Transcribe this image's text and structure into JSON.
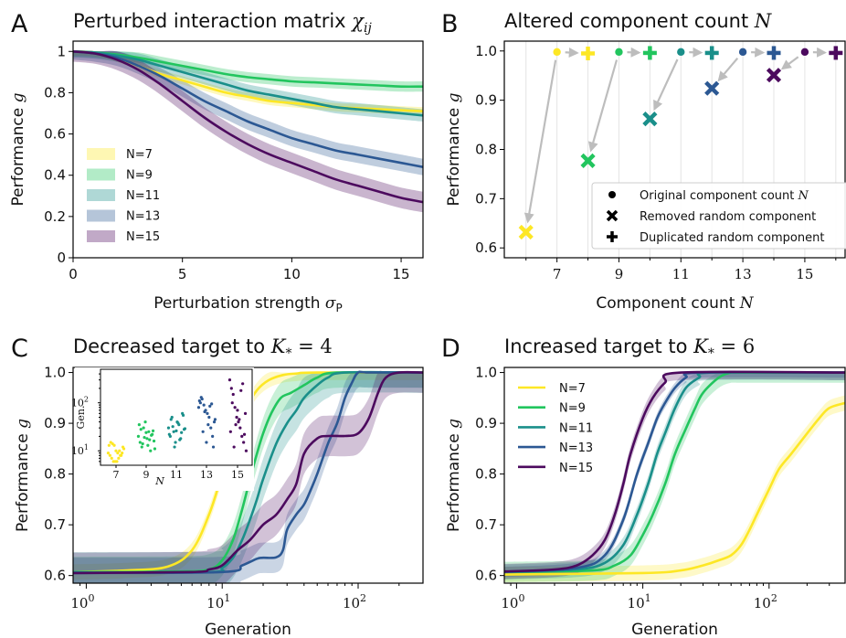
{
  "figure": {
    "colors": {
      "N=7": "#fde725",
      "N=9": "#22c55e",
      "N=11": "#1a8f8a",
      "N=13": "#2c5893",
      "N=15": "#4c0a5e"
    },
    "arrow_color": "#bdbdbd"
  },
  "chart_data": [
    {
      "panel": "A",
      "type": "line",
      "title_text": "Perturbed interaction matrix",
      "title_math": "χ",
      "title_sub": "ij",
      "xlabel_text": "Perturbation strength",
      "xlabel_math": "σ",
      "xlabel_sub": "P",
      "ylabel_text": "Performance",
      "ylabel_math": "g",
      "xlim": [
        0,
        16
      ],
      "ylim": [
        0,
        1.05
      ],
      "xticks": [
        0,
        5,
        10,
        15
      ],
      "yticks": [
        0,
        0.2,
        0.4,
        0.6,
        0.8,
        1
      ],
      "ytick_labels": [
        "0",
        "0.2",
        "0.4",
        "0.6",
        "0.8",
        "1"
      ],
      "legend": "center-left",
      "x": [
        0,
        1,
        2,
        3,
        4,
        5,
        6,
        7,
        8,
        9,
        10,
        11,
        12,
        13,
        14,
        15,
        16
      ],
      "series": [
        {
          "name": "N=7",
          "values": [
            1.0,
            0.995,
            0.97,
            0.93,
            0.89,
            0.86,
            0.83,
            0.8,
            0.78,
            0.76,
            0.75,
            0.74,
            0.73,
            0.725,
            0.72,
            0.715,
            0.71
          ],
          "band": 0.02
        },
        {
          "name": "N=9",
          "values": [
            1.0,
            0.995,
            0.985,
            0.97,
            0.95,
            0.93,
            0.91,
            0.89,
            0.875,
            0.865,
            0.855,
            0.85,
            0.845,
            0.84,
            0.835,
            0.83,
            0.83
          ],
          "band": 0.025
        },
        {
          "name": "N=11",
          "values": [
            1.0,
            0.995,
            0.98,
            0.96,
            0.93,
            0.9,
            0.87,
            0.84,
            0.81,
            0.79,
            0.77,
            0.75,
            0.73,
            0.72,
            0.71,
            0.7,
            0.69
          ],
          "band": 0.03
        },
        {
          "name": "N=13",
          "values": [
            1.0,
            0.99,
            0.97,
            0.93,
            0.88,
            0.82,
            0.76,
            0.71,
            0.66,
            0.62,
            0.58,
            0.55,
            0.52,
            0.5,
            0.48,
            0.46,
            0.44
          ],
          "band": 0.04
        },
        {
          "name": "N=15",
          "values": [
            1.0,
            0.99,
            0.96,
            0.91,
            0.84,
            0.76,
            0.68,
            0.61,
            0.55,
            0.5,
            0.46,
            0.42,
            0.38,
            0.35,
            0.32,
            0.29,
            0.27
          ],
          "band": 0.05
        }
      ]
    },
    {
      "panel": "B",
      "type": "scatter",
      "title_text": "Altered component count",
      "title_math": "N",
      "xlabel_text": "Component count",
      "xlabel_math": "N",
      "ylabel_text": "Performance",
      "ylabel_math": "g",
      "xlim": [
        5.3,
        16.3
      ],
      "ylim": [
        0.58,
        1.02
      ],
      "xticks": [
        7,
        9,
        11,
        13,
        15
      ],
      "yticks": [
        0.6,
        0.7,
        0.8,
        0.9,
        1.0
      ],
      "ytick_labels": [
        "0.6",
        "0.7",
        "0.8",
        "0.9",
        "1.0"
      ],
      "legend": "bottom-right",
      "legend_entries": [
        {
          "marker": "dot",
          "text": "Original component count",
          "math": "N"
        },
        {
          "marker": "x",
          "text": "Removed random component",
          "math": ""
        },
        {
          "marker": "plus",
          "text": "Duplicated random component",
          "math": ""
        }
      ],
      "groups": [
        {
          "name": "N=7",
          "original": {
            "x": 7,
            "y": 0.998
          },
          "removed": {
            "x": 6,
            "y": 0.632
          },
          "duplicated": {
            "x": 8,
            "y": 0.995
          }
        },
        {
          "name": "N=9",
          "original": {
            "x": 9,
            "y": 0.998
          },
          "removed": {
            "x": 8,
            "y": 0.777
          },
          "duplicated": {
            "x": 10,
            "y": 0.996
          }
        },
        {
          "name": "N=11",
          "original": {
            "x": 11,
            "y": 0.998
          },
          "removed": {
            "x": 10,
            "y": 0.862
          },
          "duplicated": {
            "x": 12,
            "y": 0.996
          }
        },
        {
          "name": "N=13",
          "original": {
            "x": 13,
            "y": 0.998
          },
          "removed": {
            "x": 12,
            "y": 0.924
          },
          "duplicated": {
            "x": 14,
            "y": 0.996
          }
        },
        {
          "name": "N=15",
          "original": {
            "x": 15,
            "y": 0.998
          },
          "removed": {
            "x": 14,
            "y": 0.951
          },
          "duplicated": {
            "x": 16,
            "y": 0.996
          }
        }
      ]
    },
    {
      "panel": "C",
      "type": "line",
      "title_text": "Decreased target to",
      "title_math": "K",
      "title_sub": "*",
      "title_eq": " = 4",
      "xlabel_text": "Generation",
      "ylabel_text": "Performance",
      "ylabel_math": "g",
      "xscale": "log",
      "xlim": [
        0.8,
        300
      ],
      "ylim": [
        0.585,
        1.01
      ],
      "xticks": [
        1,
        10,
        100
      ],
      "yticks": [
        0.6,
        0.7,
        0.8,
        0.9,
        1.0
      ],
      "ytick_labels": [
        "0.6",
        "0.7",
        "0.8",
        "0.9",
        "1.0"
      ],
      "series": [
        {
          "name": "N=7",
          "x": [
            0.8,
            2,
            4,
            6,
            8,
            10,
            12,
            15,
            18,
            22,
            28,
            35,
            50,
            300
          ],
          "values": [
            0.607,
            0.61,
            0.618,
            0.65,
            0.72,
            0.8,
            0.87,
            0.93,
            0.965,
            0.985,
            0.995,
            0.998,
            1.0,
            1.0
          ],
          "band": 0.015
        },
        {
          "name": "N=9",
          "x": [
            0.8,
            5,
            8,
            10,
            12,
            14,
            16,
            18,
            20,
            23,
            27,
            32,
            40,
            50,
            70,
            300
          ],
          "values": [
            0.607,
            0.608,
            0.612,
            0.63,
            0.67,
            0.73,
            0.79,
            0.84,
            0.88,
            0.92,
            0.95,
            0.96,
            0.975,
            0.99,
            1.0,
            1.0
          ],
          "band": 0.03
        },
        {
          "name": "N=11",
          "x": [
            0.8,
            8,
            10,
            12,
            14,
            16,
            18,
            20,
            25,
            30,
            35,
            40,
            50,
            60,
            80,
            300
          ],
          "values": [
            0.606,
            0.607,
            0.615,
            0.635,
            0.67,
            0.71,
            0.75,
            0.79,
            0.86,
            0.9,
            0.925,
            0.95,
            0.975,
            0.99,
            1.0,
            1.0
          ],
          "band": 0.04
        },
        {
          "name": "N=13",
          "x": [
            0.8,
            10,
            14,
            18,
            20,
            25,
            28,
            30,
            35,
            40,
            45,
            50,
            60,
            70,
            80,
            90,
            100,
            120,
            300
          ],
          "values": [
            0.605,
            0.607,
            0.62,
            0.633,
            0.635,
            0.636,
            0.65,
            0.69,
            0.72,
            0.74,
            0.77,
            0.8,
            0.86,
            0.9,
            0.95,
            0.98,
            1.0,
            1.0,
            1.0
          ],
          "band": 0.03
        },
        {
          "name": "N=15",
          "x": [
            0.8,
            6,
            8,
            10,
            13,
            16,
            20,
            25,
            30,
            35,
            40,
            50,
            60,
            80,
            100,
            120,
            140,
            160,
            200,
            300
          ],
          "values": [
            0.605,
            0.607,
            0.612,
            0.62,
            0.65,
            0.67,
            0.7,
            0.72,
            0.75,
            0.78,
            0.84,
            0.87,
            0.875,
            0.875,
            0.88,
            0.91,
            0.96,
            0.99,
            1.0,
            1.0
          ],
          "band": 0.04
        }
      ],
      "inset": {
        "type": "scatter",
        "ylabel": "Gen.",
        "xlabel_math": "N",
        "yscale": "log",
        "ylim": [
          5,
          500
        ],
        "xticks": [
          7,
          9,
          11,
          13,
          15
        ],
        "yticks": [
          10,
          100
        ],
        "ytick_bases": [
          "10",
          "10"
        ],
        "ytick_exps": [
          "1",
          "2"
        ],
        "points": [
          {
            "name": "N=7",
            "x": 7,
            "gens": [
              9,
              8,
              7,
              6,
              6,
              6,
              7,
              8,
              9,
              11,
              13,
              15,
              14,
              13,
              10,
              9,
              10,
              8,
              12
            ]
          },
          {
            "name": "N=9",
            "x": 9,
            "gens": [
              20,
              15,
              12,
              30,
              40,
              18,
              25,
              10,
              22,
              16,
              35,
              28,
              14,
              19,
              24,
              13,
              17,
              21,
              26,
              11
            ]
          },
          {
            "name": "N=11",
            "x": 11,
            "gens": [
              30,
              20,
              50,
              25,
              15,
              40,
              35,
              18,
              60,
              28,
              22,
              45,
              32,
              12,
              26,
              38,
              17,
              24,
              55,
              29
            ]
          },
          {
            "name": "N=13",
            "x": 13,
            "gens": [
              80,
              100,
              120,
              90,
              70,
              60,
              50,
              30,
              20,
              40,
              110,
              130,
              25,
              65,
              15,
              35,
              85,
              95,
              12,
              45
            ]
          },
          {
            "name": "N=15",
            "x": 15,
            "gens": [
              300,
              200,
              150,
              80,
              50,
              40,
              30,
              20,
              15,
              60,
              25,
              100,
              12,
              35,
              70,
              45,
              180,
              250,
              22,
              10
            ]
          }
        ]
      }
    },
    {
      "panel": "D",
      "type": "line",
      "title_text": "Increased target to",
      "title_math": "K",
      "title_sub": "*",
      "title_eq": " = 6",
      "xlabel_text": "Generation",
      "ylabel_text": "Performance",
      "ylabel_math": "g",
      "xscale": "log",
      "xlim": [
        0.8,
        400
      ],
      "ylim": [
        0.585,
        1.01
      ],
      "xticks": [
        1,
        10,
        100
      ],
      "yticks": [
        0.6,
        0.7,
        0.8,
        0.9,
        1.0
      ],
      "ytick_labels": [
        "0.6",
        "0.7",
        "0.8",
        "0.9",
        "1.0"
      ],
      "legend": "top-left",
      "series": [
        {
          "name": "N=7",
          "x": [
            0.8,
            10,
            20,
            30,
            40,
            50,
            60,
            70,
            80,
            100,
            120,
            150,
            200,
            250,
            300,
            400
          ],
          "values": [
            0.602,
            0.605,
            0.61,
            0.62,
            0.63,
            0.64,
            0.66,
            0.69,
            0.72,
            0.77,
            0.81,
            0.84,
            0.88,
            0.91,
            0.93,
            0.94
          ],
          "band": 0.015
        },
        {
          "name": "N=9",
          "x": [
            0.8,
            4,
            6,
            8,
            10,
            12,
            15,
            18,
            22,
            26,
            30,
            40,
            50,
            60,
            400
          ],
          "values": [
            0.607,
            0.61,
            0.62,
            0.64,
            0.68,
            0.72,
            0.78,
            0.84,
            0.89,
            0.93,
            0.96,
            0.99,
            1.0,
            1.0,
            1.0
          ],
          "band": 0.02
        },
        {
          "name": "N=11",
          "x": [
            0.8,
            3,
            5,
            7,
            9,
            11,
            13,
            15,
            18,
            22,
            28,
            35,
            400
          ],
          "values": [
            0.607,
            0.612,
            0.625,
            0.66,
            0.72,
            0.78,
            0.84,
            0.88,
            0.93,
            0.97,
            0.99,
            1.0,
            1.0
          ],
          "band": 0.015
        },
        {
          "name": "N=13",
          "x": [
            0.8,
            3,
            5,
            7,
            9,
            11,
            13,
            15,
            18,
            22,
            28,
            400
          ],
          "values": [
            0.607,
            0.615,
            0.64,
            0.71,
            0.8,
            0.86,
            0.91,
            0.94,
            0.97,
            0.99,
            1.0,
            1.0
          ],
          "band": 0.01
        },
        {
          "name": "N=15",
          "x": [
            0.8,
            2,
            3,
            4,
            5,
            6,
            7,
            8,
            10,
            12,
            15,
            20,
            400
          ],
          "values": [
            0.608,
            0.612,
            0.62,
            0.64,
            0.67,
            0.72,
            0.78,
            0.84,
            0.91,
            0.95,
            0.98,
            1.0,
            1.0
          ],
          "band": 0.015
        }
      ]
    }
  ]
}
